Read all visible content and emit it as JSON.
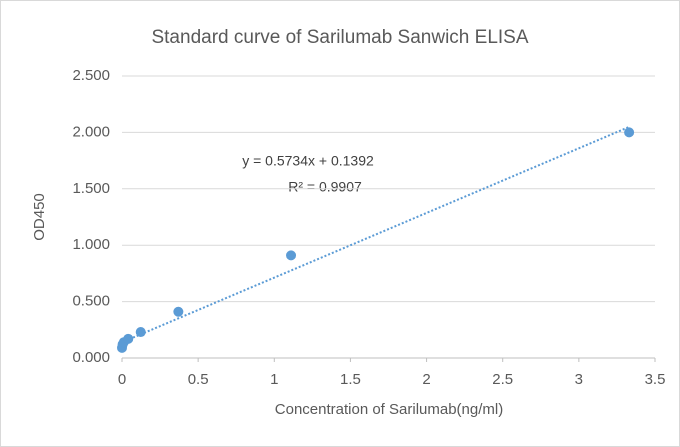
{
  "chart_data": {
    "type": "scatter",
    "title": "Standard curve of Sarilumab Sanwich ELISA",
    "x_label": "Concentration of Sarilumab(ng/ml)",
    "y_label": "OD450",
    "series": [
      {
        "name": "OD450",
        "color": "#5b9bd5",
        "x": [
          0,
          0.004,
          0.012,
          0.041,
          0.123,
          0.37,
          1.11,
          3.33
        ],
        "values": [
          0.09,
          0.12,
          0.14,
          0.17,
          0.23,
          0.41,
          0.91,
          2.0
        ]
      }
    ],
    "trendline": {
      "slope": 0.5734,
      "intercept": 0.1392,
      "label": "y = 0.5734x + 0.1392",
      "r2": 0.9907,
      "r2_label": "R² = 0.9907"
    },
    "xlim": [
      0,
      3.5
    ],
    "xticks": [
      0,
      0.5,
      1,
      1.5,
      2,
      2.5,
      3,
      3.5
    ],
    "ylim": [
      0,
      2.5
    ],
    "yticks": [
      {
        "value": 0,
        "label": "0.000"
      },
      {
        "value": 0.5,
        "label": "0.500"
      },
      {
        "value": 1,
        "label": "1.000"
      },
      {
        "value": 1.5,
        "label": "1.500"
      },
      {
        "value": 2,
        "label": "2.000"
      },
      {
        "value": 2.5,
        "label": "2.500"
      }
    ],
    "grid": true
  }
}
